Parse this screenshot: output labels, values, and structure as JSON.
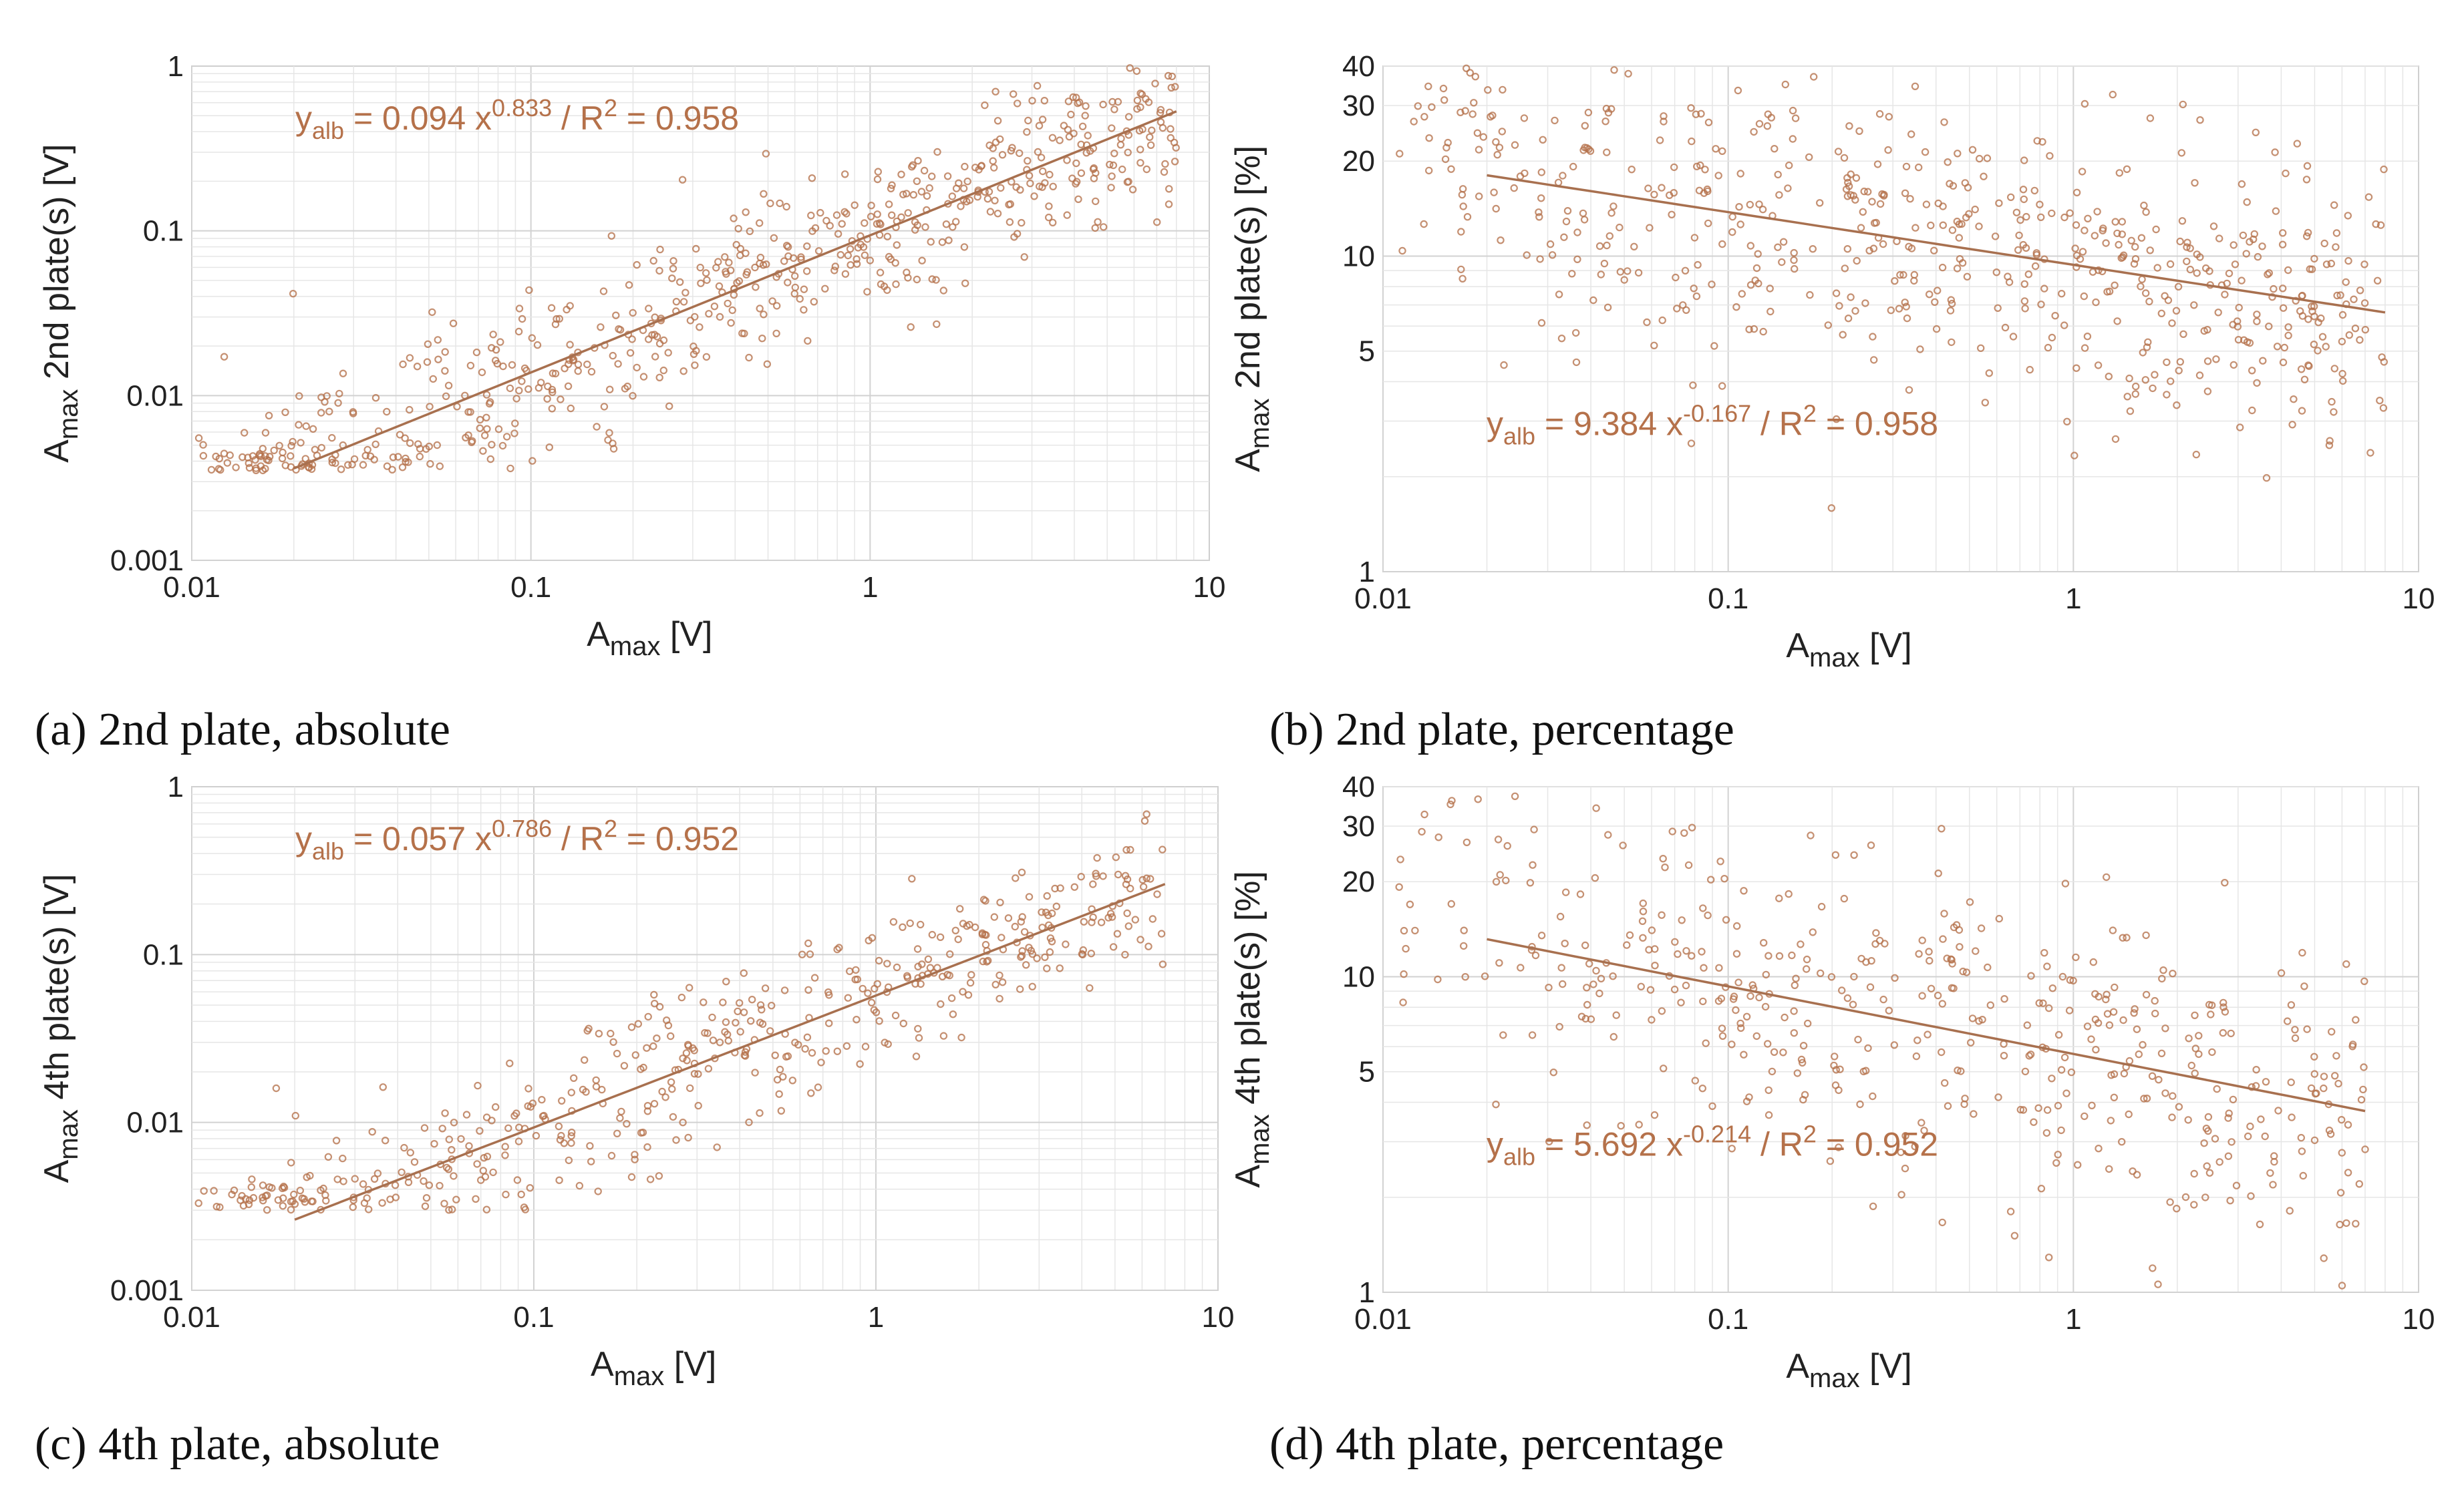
{
  "colors": {
    "marker": "#b5714a",
    "equation": "#b5714a",
    "fit": "#a8704f",
    "text": "#222222"
  },
  "chart_data": [
    {
      "id": "a",
      "type": "scatter",
      "caption": "(a) 2nd plate, absolute",
      "xlabel": "A",
      "xlabel_sub": "max",
      "xlabel_unit": " [V]",
      "ylabel": "A",
      "ylabel_sub": "max",
      "ylabel_rest": " 2nd plate(s) [V]",
      "xscale": "log",
      "yscale": "log",
      "xlim": [
        0.01,
        10
      ],
      "ylim": [
        0.001,
        1
      ],
      "xticks": [
        0.01,
        0.1,
        1,
        10
      ],
      "xtick_labels": [
        "0.01",
        "0.1",
        "1",
        "10"
      ],
      "yticks": [
        0.001,
        0.01,
        0.1,
        1
      ],
      "ytick_labels": [
        "0.001",
        "0.01",
        "0.1",
        "1"
      ],
      "grid": true,
      "fit": {
        "a": 0.094,
        "b": 0.833,
        "r2": 0.958,
        "x_range": [
          0.02,
          8
        ]
      },
      "equation": {
        "y": "y",
        "y_sub": "alb",
        "lhs": " = 0.094 x",
        "exp": "0.833",
        "mid": " / R",
        "r_exp": "2",
        "rhs": " = 0.958"
      },
      "scatter": {
        "n": 620,
        "x_range": [
          0.01,
          8
        ],
        "floor": 0.0035,
        "noise": 0.22,
        "seed": 11
      }
    },
    {
      "id": "b",
      "type": "scatter",
      "caption": "(b) 2nd plate, percentage",
      "xlabel": "A",
      "xlabel_sub": "max",
      "xlabel_unit": " [V]",
      "ylabel": "A",
      "ylabel_sub": "max",
      "ylabel_rest": " 2nd plate(s) [%]",
      "xscale": "log",
      "yscale": "log",
      "xlim": [
        0.01,
        10
      ],
      "ylim": [
        1,
        40
      ],
      "xticks": [
        0.01,
        0.1,
        1,
        10
      ],
      "xtick_labels": [
        "0.01",
        "0.1",
        "1",
        "10"
      ],
      "yticks": [
        1,
        5,
        10,
        20,
        30,
        40
      ],
      "ytick_labels": [
        "1",
        "5",
        "10",
        "20",
        "30",
        "40"
      ],
      "grid": true,
      "fit": {
        "a": 9.384,
        "b": -0.167,
        "r2": 0.958,
        "x_range": [
          0.02,
          8
        ]
      },
      "equation": {
        "y": "y",
        "y_sub": "alb",
        "lhs": " = 9.384 x",
        "exp": "-0.167",
        "mid": " / R",
        "r_exp": "2",
        "rhs": " = 0.958"
      },
      "scatter": {
        "n": 620,
        "x_range": [
          0.01,
          8
        ],
        "floor": 0,
        "noise": 0.2,
        "seed": 23,
        "low_x_boost": true
      }
    },
    {
      "id": "c",
      "type": "scatter",
      "caption": "(c) 4th plate, absolute",
      "xlabel": "A",
      "xlabel_sub": "max",
      "xlabel_unit": " [V]",
      "ylabel": "A",
      "ylabel_sub": "max",
      "ylabel_rest": " 4th plate(s) [V]",
      "xscale": "log",
      "yscale": "log",
      "xlim": [
        0.01,
        10
      ],
      "ylim": [
        0.001,
        1
      ],
      "xticks": [
        0.01,
        0.1,
        1,
        10
      ],
      "xtick_labels": [
        "0.01",
        "0.1",
        "1",
        "10"
      ],
      "yticks": [
        0.001,
        0.01,
        0.1,
        1
      ],
      "ytick_labels": [
        "0.001",
        "0.01",
        "0.1",
        "1"
      ],
      "grid": true,
      "fit": {
        "a": 0.057,
        "b": 0.786,
        "r2": 0.952,
        "x_range": [
          0.02,
          7
        ]
      },
      "equation": {
        "y": "y",
        "y_sub": "alb",
        "lhs": " = 0.057 x",
        "exp": "0.786",
        "mid": " / R",
        "r_exp": "2",
        "rhs": " = 0.952"
      },
      "scatter": {
        "n": 480,
        "x_range": [
          0.01,
          7
        ],
        "floor": 0.003,
        "noise": 0.2,
        "seed": 37
      }
    },
    {
      "id": "d",
      "type": "scatter",
      "caption": "(d) 4th plate, percentage",
      "xlabel": "A",
      "xlabel_sub": "max",
      "xlabel_unit": " [V]",
      "ylabel": "A",
      "ylabel_sub": "max",
      "ylabel_rest": " 4th plate(s) [%]",
      "xscale": "log",
      "yscale": "log",
      "xlim": [
        0.01,
        10
      ],
      "ylim": [
        1,
        40
      ],
      "xticks": [
        0.01,
        0.1,
        1,
        10
      ],
      "xtick_labels": [
        "0.01",
        "0.1",
        "1",
        "10"
      ],
      "yticks": [
        1,
        5,
        10,
        20,
        30,
        40
      ],
      "ytick_labels": [
        "1",
        "5",
        "10",
        "20",
        "30",
        "40"
      ],
      "grid": true,
      "fit": {
        "a": 5.692,
        "b": -0.214,
        "r2": 0.952,
        "x_range": [
          0.02,
          7
        ]
      },
      "equation": {
        "y": "y",
        "y_sub": "alb",
        "lhs": " = 5.692 x",
        "exp": "-0.214",
        "mid": " / R",
        "r_exp": "2",
        "rhs": " = 0.952"
      },
      "scatter": {
        "n": 480,
        "x_range": [
          0.01,
          7
        ],
        "floor": 0,
        "noise": 0.22,
        "seed": 53,
        "low_x_boost": true
      }
    }
  ]
}
